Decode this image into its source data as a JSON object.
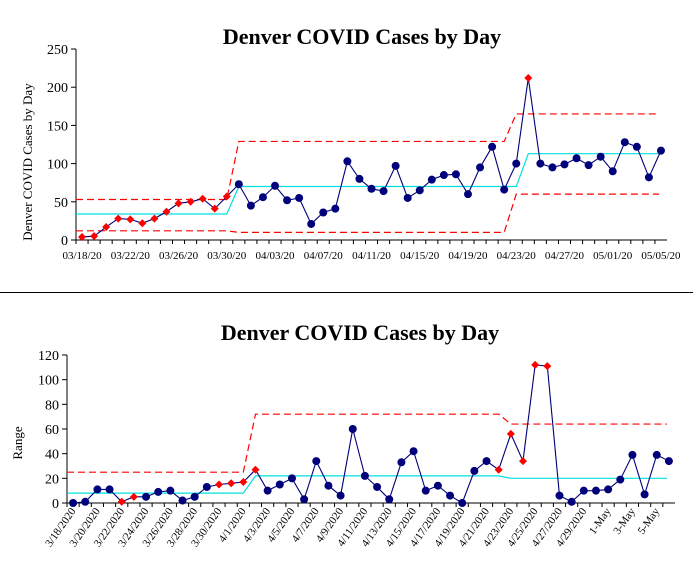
{
  "chart_data": [
    {
      "type": "line",
      "title": "Denver COVID Cases by Day",
      "xlabel": "",
      "ylabel": "Denver  COVID Cases by Day",
      "ylim": [
        0,
        250
      ],
      "yticks": [
        0,
        50,
        100,
        150,
        200,
        250
      ],
      "grid": false,
      "legend": "none",
      "x_start": "03/18/20",
      "xtick_labels": [
        "03/18/20",
        "03/22/20",
        "03/26/20",
        "03/30/20",
        "04/03/20",
        "04/07/20",
        "04/11/20",
        "04/15/20",
        "04/19/20",
        "04/23/20",
        "04/27/20",
        "05/01/20",
        "05/05/20"
      ],
      "values": [
        4,
        5,
        17,
        28,
        27,
        22,
        28,
        37,
        48,
        50,
        54,
        41,
        57,
        73,
        45,
        56,
        71,
        52,
        55,
        21,
        36,
        41,
        103,
        80,
        67,
        64,
        97,
        55,
        65,
        79,
        85,
        86,
        60,
        95,
        122,
        66,
        100,
        212,
        100,
        95,
        99,
        107,
        98,
        109,
        90,
        128,
        122,
        82,
        117
      ],
      "out_of_control_points": [
        0,
        1,
        2,
        3,
        4,
        5,
        6,
        7,
        8,
        9,
        10,
        11,
        12,
        37
      ],
      "center_line": [
        {
          "from": 0,
          "to": 12,
          "value": 34
        },
        {
          "from": 13,
          "to": 36,
          "value": 70
        },
        {
          "from": 37,
          "to": 48,
          "value": 113
        }
      ],
      "upper_limit": [
        {
          "from": 0,
          "to": 12,
          "value": 53
        },
        {
          "from": 13,
          "to": 35,
          "value": 129
        },
        {
          "from": 36,
          "to": 48,
          "value": 165
        }
      ],
      "lower_limit": [
        {
          "from": 0,
          "to": 12,
          "value": 12
        },
        {
          "from": 13,
          "to": 35,
          "value": 10
        },
        {
          "from": 36,
          "to": 48,
          "value": 60
        }
      ],
      "colors": {
        "points": "#00007a",
        "points_flagged": "#ff0000",
        "line": "#00007a",
        "center": "#00e0e0",
        "limits": "#ff0000"
      }
    },
    {
      "type": "line",
      "title": "Denver COVID Cases by Day",
      "xlabel": "",
      "ylabel": "Range",
      "ylim": [
        0,
        120
      ],
      "yticks": [
        0,
        20,
        40,
        60,
        80,
        100,
        120
      ],
      "grid": false,
      "legend": "none",
      "x_start": "3/18/2020",
      "xtick_labels": [
        "3/18/2020",
        "3/20/2020",
        "3/22/2020",
        "3/24/2020",
        "3/26/2020",
        "3/28/2020",
        "3/30/2020",
        "4/1/2020",
        "4/3/2020",
        "4/5/2020",
        "4/7/2020",
        "4/9/2020",
        "4/11/2020",
        "4/13/2020",
        "4/15/2020",
        "4/17/2020",
        "4/19/2020",
        "4/21/2020",
        "4/23/2020",
        "4/25/2020",
        "4/27/2020",
        "4/29/2020",
        "1-May",
        "3-May",
        "5-May"
      ],
      "values": [
        0,
        1,
        11,
        11,
        1,
        5,
        5,
        9,
        10,
        2,
        5,
        13,
        15,
        16,
        17,
        27,
        10,
        15,
        20,
        3,
        34,
        14,
        6,
        60,
        22,
        13,
        3,
        33,
        42,
        10,
        14,
        6,
        0,
        26,
        34,
        27,
        56,
        34,
        112,
        111,
        6,
        1,
        10,
        10,
        11,
        19,
        39,
        7,
        39,
        34
      ],
      "out_of_control_points": [
        35,
        36,
        37,
        38,
        39
      ],
      "out_of_control_points_extra": [
        4,
        5,
        12,
        13,
        14,
        15
      ],
      "center_line": [
        {
          "from": 0,
          "to": 14,
          "value": 8
        },
        {
          "from": 15,
          "to": 35,
          "value": 22
        },
        {
          "from": 36,
          "to": 49,
          "value": 20
        }
      ],
      "upper_limit": [
        {
          "from": 0,
          "to": 14,
          "value": 25
        },
        {
          "from": 15,
          "to": 35,
          "value": 72
        },
        {
          "from": 36,
          "to": 49,
          "value": 64
        }
      ],
      "colors": {
        "points": "#00007a",
        "points_flagged": "#ff0000",
        "line": "#00007a",
        "center": "#00e0e0",
        "limits": "#ff0000"
      }
    }
  ]
}
